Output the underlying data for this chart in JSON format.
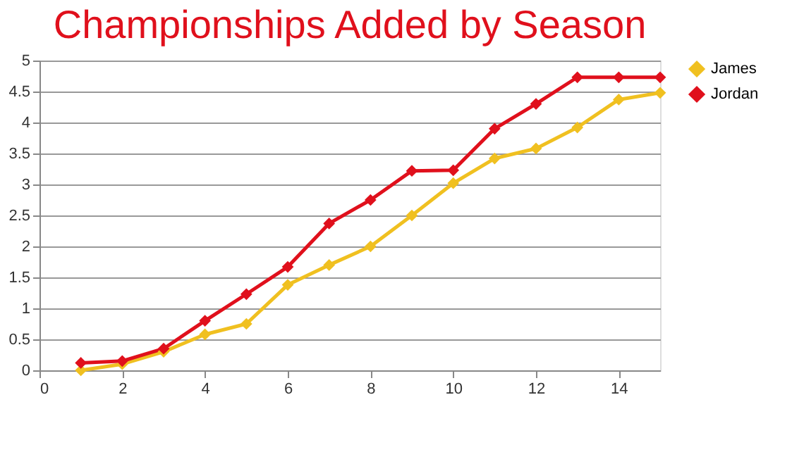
{
  "chart_data": {
    "type": "line",
    "title": "Championships Added by Season",
    "x": [
      1,
      2,
      3,
      4,
      5,
      6,
      7,
      8,
      9,
      10,
      11,
      12,
      13,
      14,
      15
    ],
    "series": [
      {
        "name": "James",
        "color": "#f0c020",
        "values": [
          0,
          0.1,
          0.3,
          0.58,
          0.75,
          1.38,
          1.7,
          2.0,
          2.5,
          3.02,
          3.42,
          3.58,
          3.92,
          4.37,
          4.48
        ]
      },
      {
        "name": "Jordan",
        "color": "#e0101c",
        "values": [
          0.12,
          0.15,
          0.35,
          0.8,
          1.23,
          1.67,
          2.37,
          2.75,
          3.22,
          3.23,
          3.9,
          4.3,
          4.73,
          4.73,
          4.73
        ]
      }
    ],
    "xlim": [
      0,
      15
    ],
    "xticks": [
      0,
      2,
      4,
      6,
      8,
      10,
      12,
      14
    ],
    "ylim": [
      0,
      5
    ],
    "yticks": [
      0,
      0.5,
      1,
      1.5,
      2,
      2.5,
      3,
      3.5,
      4,
      4.5,
      5
    ],
    "grid": "y",
    "legend": "right",
    "marker": "diamond",
    "line_style": "solid"
  }
}
